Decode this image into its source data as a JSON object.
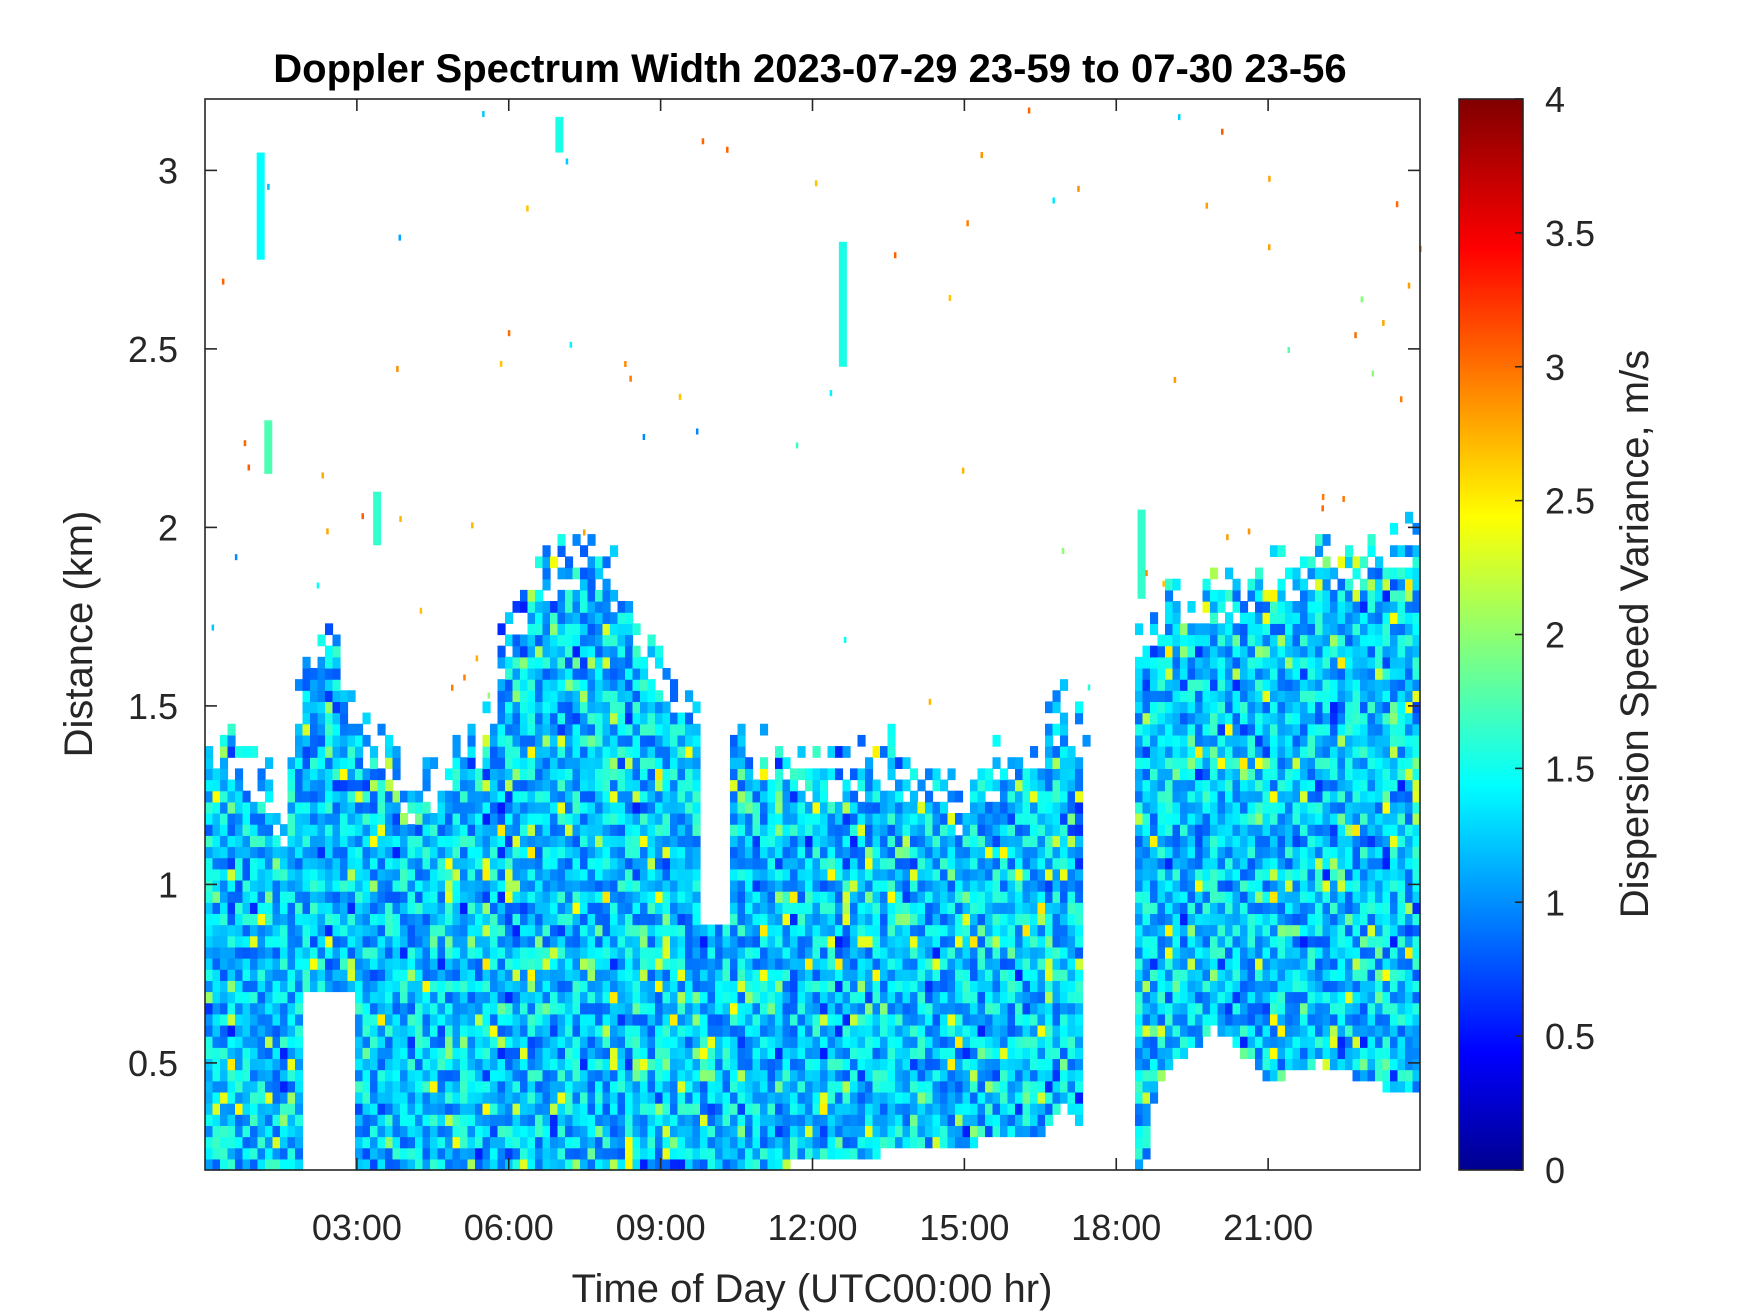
{
  "chart_data": {
    "type": "heatmap",
    "title": "Doppler Spectrum Width 2023-07-29 23-59 to 07-30 23-56",
    "xlabel": "Time of Day (UTC00:00 hr)",
    "ylabel": "Distance (km)",
    "colorbar_label": "Dispersion Speed Variance, m/s",
    "colormap": "jet",
    "xlim": [
      0,
      24
    ],
    "ylim": [
      0.2,
      3.2
    ],
    "clim": [
      0,
      4
    ],
    "x_ticks": [
      3,
      6,
      9,
      12,
      15,
      18,
      21
    ],
    "x_tick_labels": [
      "03:00",
      "06:00",
      "09:00",
      "12:00",
      "15:00",
      "18:00",
      "21:00"
    ],
    "y_ticks": [
      0.5,
      1,
      1.5,
      2,
      2.5,
      3
    ],
    "y_tick_labels": [
      "0.5",
      "1",
      "1.5",
      "2",
      "2.5",
      "3"
    ],
    "colorbar_ticks": [
      0,
      0.5,
      1,
      1.5,
      2,
      2.5,
      3,
      3.5,
      4
    ],
    "colorbar_tick_labels": [
      "0",
      "0.5",
      "1",
      "1.5",
      "2",
      "2.5",
      "3",
      "3.5",
      "4"
    ],
    "grid": false,
    "typical_value": 1.3,
    "echo_top_profile": {
      "time_hr": [
        0,
        0.5,
        1.0,
        1.3,
        1.6,
        2.0,
        2.5,
        3.0,
        3.5,
        4.0,
        4.5,
        5.0,
        5.5,
        6.0,
        6.5,
        7.0,
        7.5,
        8.0,
        8.5,
        9.0,
        9.5,
        10.0,
        10.3,
        10.6,
        11.0,
        11.5,
        12.0,
        12.5,
        13.0,
        13.5,
        14.0,
        14.5,
        15.0,
        15.5,
        16.0,
        16.5,
        17.0,
        17.5,
        18.0,
        18.4,
        18.8,
        19.5,
        20.0,
        20.5,
        21.0,
        21.5,
        22.0,
        22.5,
        23.0,
        23.5,
        24.0
      ],
      "top_km": [
        1.45,
        1.4,
        1.35,
        1.3,
        1.2,
        1.7,
        1.75,
        1.45,
        1.45,
        1.3,
        1.3,
        1.45,
        1.45,
        1.75,
        1.85,
        1.95,
        1.95,
        1.9,
        1.8,
        1.65,
        1.55,
        1.5,
        1.5,
        1.5,
        1.4,
        1.4,
        1.35,
        1.35,
        1.35,
        1.4,
        1.35,
        1.3,
        1.25,
        1.35,
        1.4,
        1.45,
        1.55,
        1.4,
        0.0,
        1.75,
        1.8,
        1.85,
        1.85,
        1.85,
        1.9,
        1.9,
        1.95,
        1.95,
        1.95,
        2.0,
        2.0
      ]
    },
    "echo_base_profile": {
      "time_hr": [
        0,
        10.3,
        10.6,
        16.5,
        17.0,
        18.4,
        18.8,
        20.0,
        21.0,
        22.0,
        24.0
      ],
      "base_km": [
        0.2,
        0.2,
        0.2,
        0.3,
        0.4,
        0.0,
        0.45,
        0.6,
        0.45,
        0.5,
        0.4
      ]
    },
    "gaps": [
      {
        "time_hr": [
          1.9,
          2.9
        ],
        "km": [
          0.2,
          0.7
        ]
      },
      {
        "time_hr": [
          9.8,
          10.4
        ],
        "km": [
          0.9,
          1.5
        ]
      },
      {
        "time_hr": [
          17.3,
          18.4
        ],
        "km": [
          0.2,
          1.4
        ]
      }
    ],
    "isolated_features": [
      {
        "time_hr": 1.1,
        "km": [
          2.75,
          3.05
        ],
        "value": 1.5
      },
      {
        "time_hr": 1.25,
        "km": [
          2.15,
          2.3
        ],
        "value": 1.8
      },
      {
        "time_hr": 3.4,
        "km": [
          1.95,
          2.1
        ],
        "value": 1.7
      },
      {
        "time_hr": 7.0,
        "km": [
          3.05,
          3.15
        ],
        "value": 1.6
      },
      {
        "time_hr": 12.6,
        "km": [
          2.45,
          2.8
        ],
        "value": 1.6
      },
      {
        "time_hr": 18.5,
        "km": [
          1.8,
          2.05
        ],
        "value": 1.7
      }
    ]
  }
}
